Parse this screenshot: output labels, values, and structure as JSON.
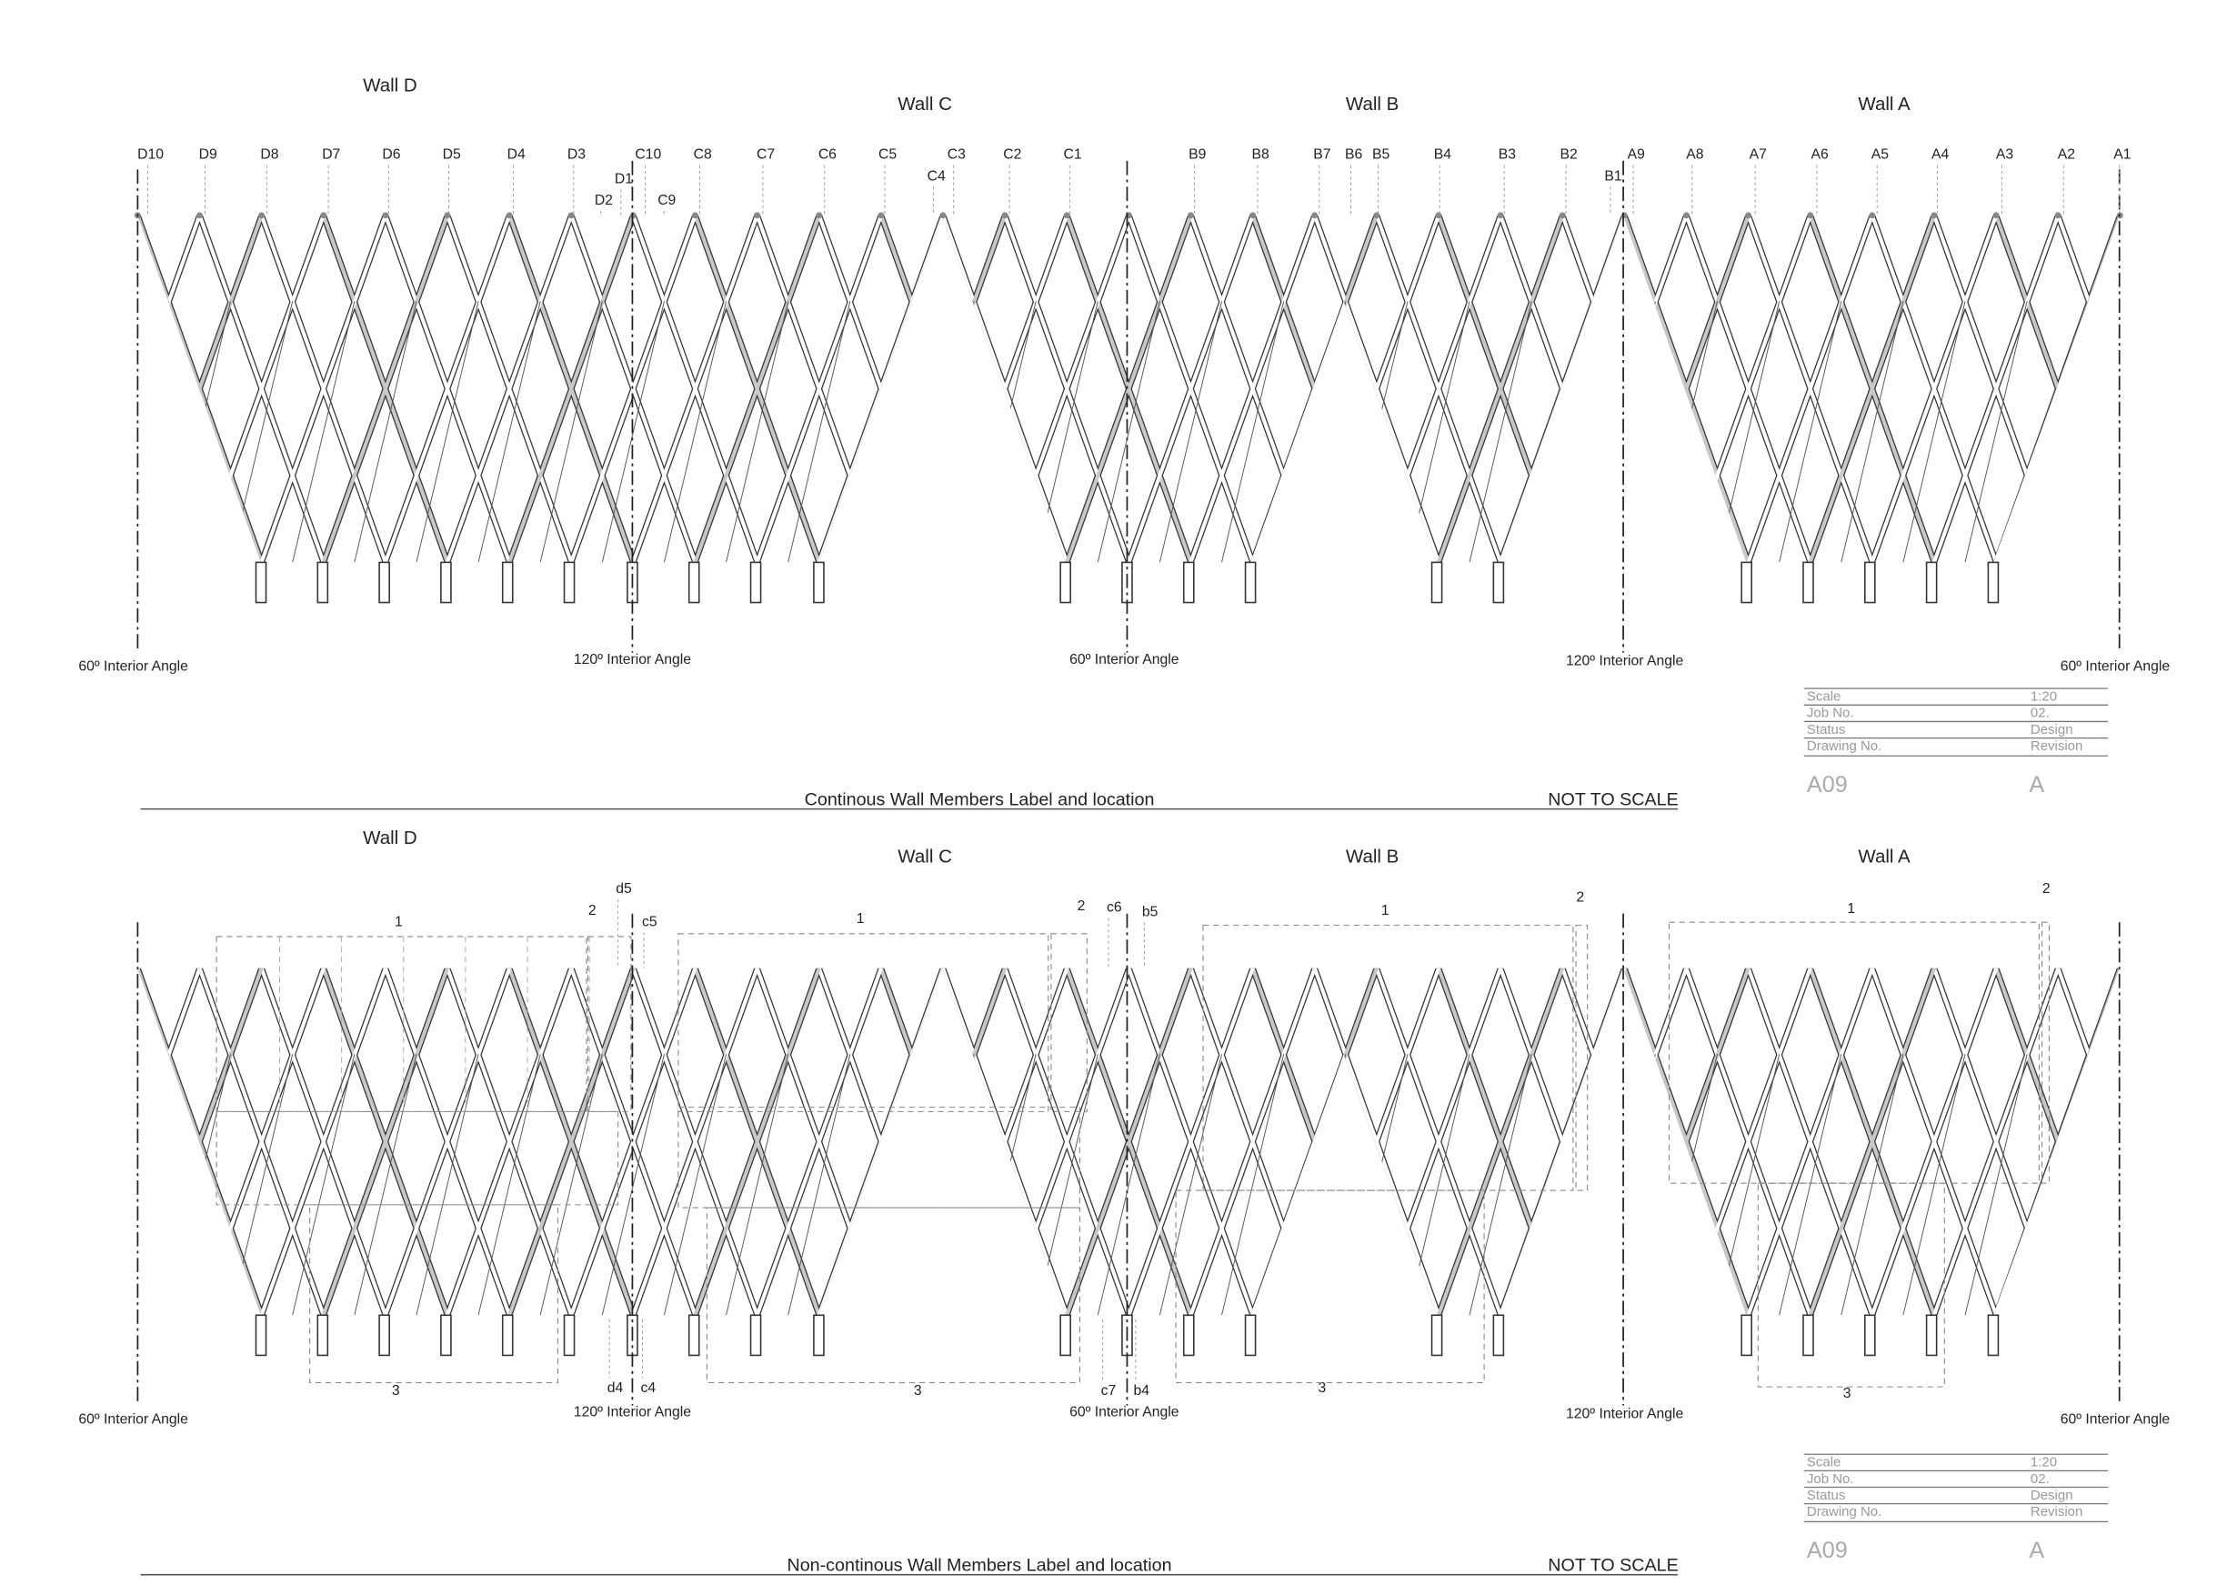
{
  "panels": [
    {
      "walls": [
        "Wall D",
        "Wall C",
        "Wall B",
        "Wall A"
      ],
      "member_labels": [
        "D10",
        "D9",
        "D8",
        "D7",
        "D6",
        "D5",
        "D4",
        "D3",
        "C10",
        "C8",
        "C7",
        "C6",
        "C5",
        "C3",
        "C2",
        "C1",
        "B9",
        "B8",
        "B7",
        "B6",
        "B5",
        "B4",
        "B3",
        "B2",
        "A9",
        "A8",
        "A7",
        "A6",
        "A5",
        "A4",
        "A3",
        "A2",
        "A1",
        "D1",
        "D2",
        "C9",
        "C4",
        "B1"
      ],
      "angle_labels": [
        "60º Interior Angle",
        "120º Interior Angle",
        "60º Interior Angle",
        "120º Interior Angle",
        "60º Interior Angle"
      ],
      "title_block": {
        "rows": [
          [
            "Scale",
            "1:20"
          ],
          [
            "Job No.",
            "02."
          ],
          [
            "Status",
            "Design"
          ],
          [
            "Drawing No.",
            "Revision"
          ]
        ],
        "drawing_no": "A09",
        "revision": "A"
      },
      "caption": "Continous Wall Members Label and location",
      "note": "NOT TO SCALE"
    },
    {
      "walls": [
        "Wall D",
        "Wall C",
        "Wall B",
        "Wall A"
      ],
      "member_labels": [
        "d5",
        "c5",
        "c6",
        "b5",
        "d4",
        "c4",
        "c7",
        "b4"
      ],
      "group_labels": [
        "1",
        "2",
        "1",
        "2",
        "1",
        "2",
        "1",
        "2",
        "3",
        "3",
        "3",
        "3"
      ],
      "angle_labels": [
        "60º Interior Angle",
        "120º Interior Angle",
        "60º Interior Angle",
        "120º Interior Angle",
        "60º Interior Angle"
      ],
      "title_block": {
        "rows": [
          [
            "Scale",
            "1:20"
          ],
          [
            "Job No.",
            "02."
          ],
          [
            "Status",
            "Design"
          ],
          [
            "Drawing No.",
            "Revision"
          ]
        ],
        "drawing_no": "A09",
        "revision": "A"
      },
      "caption": "Non-continous Wall Members Label and location",
      "note": "NOT TO SCALE"
    }
  ]
}
